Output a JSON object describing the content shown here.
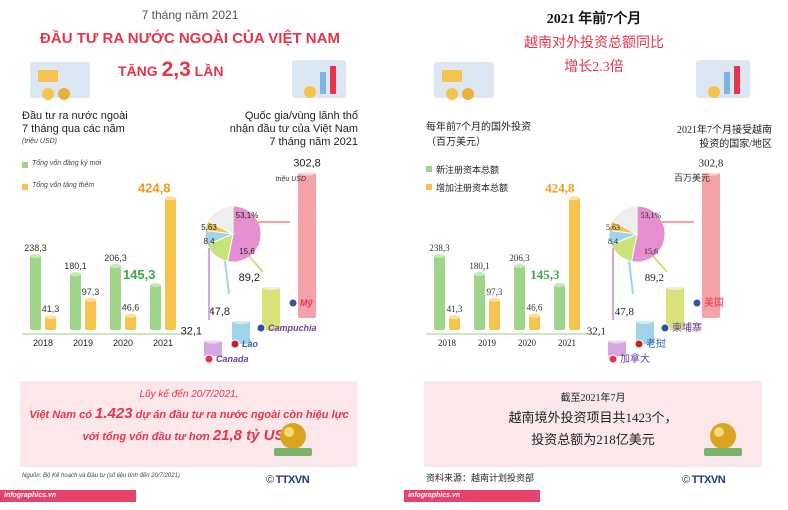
{
  "colors": {
    "new_green": "#9fd58a",
    "added_yellow": "#f6c44e",
    "title_red": "#e8344b",
    "value_orange": "#f29a1f",
    "value_green": "#3aa84a",
    "pink_box": "#fce8ea",
    "infographics_bar": "#e8416a"
  },
  "vi": {
    "period": "7 tháng năm 2021",
    "title_line1": "ĐẦU TƯ RA NƯỚC NGOÀI CỦA VIỆT NAM",
    "title_line2_a": "TĂNG ",
    "title_line2_big": "2,3",
    "title_line2_b": " LẦN",
    "left_heading_1": "Đầu tư ra nước ngoài",
    "left_heading_2": "7 tháng qua các năm",
    "left_unit": "(triệu USD)",
    "legend_new": "Tổng vốn đăng ký mới",
    "legend_added": "Tổng vốn tăng thêm",
    "right_heading_1": "Quốc gia/vùng lãnh thổ",
    "right_heading_2": "nhận đầu tư của Việt Nam",
    "right_heading_3": "7 tháng năm 2021",
    "country_unit": "triệu USD",
    "summary_1": "Lũy kế đến 20/7/2021,",
    "summary_2a": "Việt Nam có ",
    "summary_2b": "1.423",
    "summary_2c": " dự án đầu tư ra nước ngoài còn hiệu lực",
    "summary_3a": "với tổng vốn đầu tư hơn ",
    "summary_3b": "21,8 tỷ USD",
    "source": "Nguồn: Bộ Kế hoạch và Đầu tư (số liệu tính đến 20/7/2021)",
    "site": "infographics.vn",
    "agency": "TTXVN",
    "countries": [
      "Mỹ",
      "Campuchia",
      "Lào",
      "Canada"
    ]
  },
  "zh": {
    "title_1": "2021 年前7个月",
    "title_2": "越南对外投资总额同比",
    "title_3": "增长2.3倍",
    "left_heading_1": "每年前7个月的国外投资",
    "left_unit": "（百万美元）",
    "legend_new": "新注册资本总额",
    "legend_added": "增加注册资本总额",
    "right_heading_1": "2021年7个月接受越南",
    "right_heading_2": "投资的国家/地区",
    "country_unit": "百万美元",
    "summary_1": "截至2021年7月",
    "summary_2": "越南境外投资项目共1423个，",
    "summary_3": "投资总额为218亿美元",
    "source": "资料来源：越南计划投资部",
    "site": "infographics.vn",
    "agency": "TTXVN",
    "countries": [
      "美国",
      "柬埔寨",
      "老挝",
      "加拿大"
    ]
  },
  "chart_data": [
    {
      "type": "bar",
      "categories": [
        "2018",
        "2019",
        "2020",
        "2021"
      ],
      "series": [
        {
          "name": "Tổng vốn đăng ký mới",
          "values": [
            238.3,
            180.1,
            206.3,
            145.3
          ]
        },
        {
          "name": "Tổng vốn tăng thêm",
          "values": [
            41.3,
            97.3,
            46.6,
            424.8
          ]
        }
      ],
      "value_labels": {
        "new": [
          "238,3",
          "180,1",
          "206,3",
          "145,3"
        ],
        "added": [
          "41,3",
          "97,3",
          "46,6",
          "424,8"
        ]
      },
      "value_labels_zh": {
        "new": [
          "238,3",
          "180,1",
          "206,3",
          "145,3"
        ],
        "added": [
          "41,3",
          "97,3",
          "46,6",
          "424,8"
        ]
      }
    },
    {
      "type": "bar",
      "categories": [
        "Mỹ",
        "Campuchia",
        "Lào",
        "Canada"
      ],
      "values": [
        302.8,
        89.2,
        47.8,
        32.1
      ],
      "value_labels": [
        "302,8",
        "89,2",
        "47,8",
        "32,1"
      ]
    },
    {
      "type": "pie",
      "values": [
        53.1,
        15.6,
        8.4,
        5.63
      ],
      "value_labels": [
        "53,1%",
        "15,6",
        "8,4",
        "5,63"
      ]
    }
  ]
}
